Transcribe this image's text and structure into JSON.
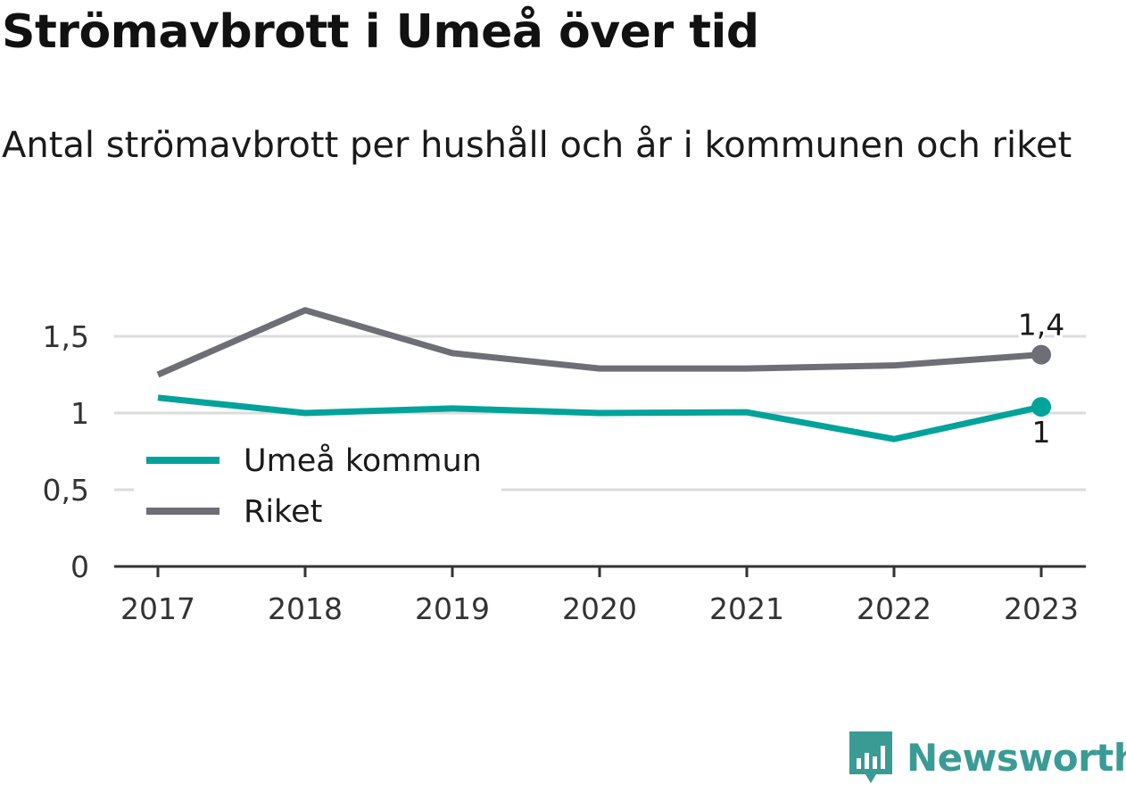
{
  "title": "Strömavbrott i Umeå över tid",
  "subtitle": "Antal strömavbrott per hushåll och år i kommunen och riket",
  "brand": "Newsworthy",
  "colors": {
    "umea": "#00a39a",
    "riket": "#6e6e76",
    "grid": "#dcdcdc",
    "axis": "#333333",
    "brand": "#3a9b95"
  },
  "chart_data": {
    "type": "line",
    "title": "Strömavbrott i Umeå över tid",
    "subtitle": "Antal strömavbrott per hushåll och år i kommunen och riket",
    "x": [
      "2017",
      "2018",
      "2019",
      "2020",
      "2021",
      "2022",
      "2023"
    ],
    "ylim": [
      0,
      1.5
    ],
    "yticks": [
      0,
      0.5,
      1,
      1.5
    ],
    "ytick_labels": [
      "0",
      "0,5",
      "1",
      "1,5"
    ],
    "grid": true,
    "legend_position": "left",
    "series": [
      {
        "name": "Umeå kommun",
        "color": "#00a39a",
        "values": [
          1.1,
          1.0,
          1.03,
          1.0,
          1.005,
          0.83,
          1.04
        ],
        "end_label": "1"
      },
      {
        "name": "Riket",
        "color": "#6e6e76",
        "values": [
          1.25,
          1.67,
          1.39,
          1.29,
          1.29,
          1.31,
          1.38
        ],
        "end_label": "1,4"
      }
    ]
  }
}
